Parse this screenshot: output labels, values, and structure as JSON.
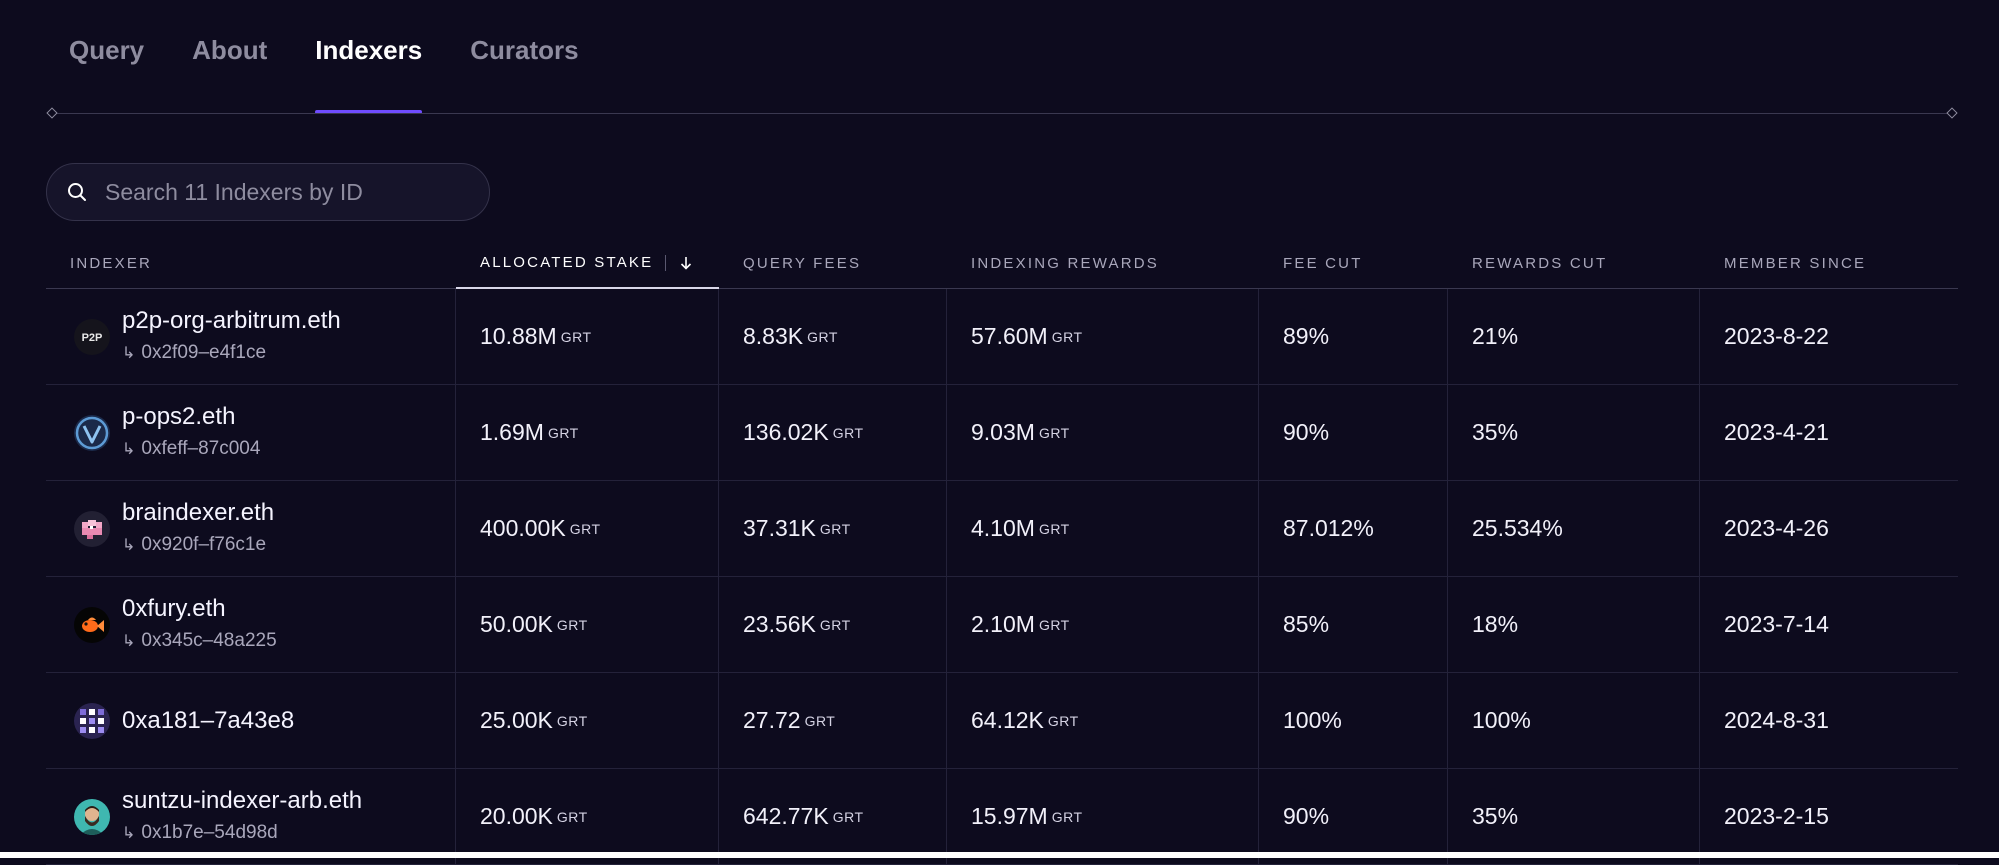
{
  "tabs": [
    {
      "label": "Query",
      "active": false
    },
    {
      "label": "About",
      "active": false
    },
    {
      "label": "Indexers",
      "active": true
    },
    {
      "label": "Curators",
      "active": false
    }
  ],
  "search": {
    "placeholder": "Search 11 Indexers by ID",
    "value": ""
  },
  "table": {
    "headers": {
      "indexer": "INDEXER",
      "allocated_stake": "ALLOCATED STAKE",
      "query_fees": "QUERY FEES",
      "indexing_rewards": "INDEXING REWARDS",
      "fee_cut": "FEE CUT",
      "rewards_cut": "REWARDS CUT",
      "member_since": "MEMBER SINCE"
    },
    "sort": {
      "column": "allocated_stake",
      "direction": "descending"
    },
    "unit": "GRT",
    "rows": [
      {
        "name": "p2p-org-arbitrum.eth",
        "address": "0x2f09–e4f1ce",
        "avatar_icon": "p2p-logo-icon",
        "allocated_stake": "10.88M",
        "query_fees": "8.83K",
        "indexing_rewards": "57.60M",
        "fee_cut": "89%",
        "rewards_cut": "21%",
        "member_since": "2023-8-22"
      },
      {
        "name": "p-ops2.eth",
        "address": "0xfeff–87c004",
        "avatar_icon": "v-check-logo-icon",
        "allocated_stake": "1.69M",
        "query_fees": "136.02K",
        "indexing_rewards": "9.03M",
        "fee_cut": "90%",
        "rewards_cut": "35%",
        "member_since": "2023-4-21"
      },
      {
        "name": "braindexer.eth",
        "address": "0x920f–f76c1e",
        "avatar_icon": "brain-logo-icon",
        "allocated_stake": "400.00K",
        "query_fees": "37.31K",
        "indexing_rewards": "4.10M",
        "fee_cut": "87.012%",
        "rewards_cut": "25.534%",
        "member_since": "2023-4-26"
      },
      {
        "name": "0xfury.eth",
        "address": "0x345c–48a225",
        "avatar_icon": "goldfish-logo-icon",
        "allocated_stake": "50.00K",
        "query_fees": "23.56K",
        "indexing_rewards": "2.10M",
        "fee_cut": "85%",
        "rewards_cut": "18%",
        "member_since": "2023-7-14"
      },
      {
        "name": "0xa181–7a43e8",
        "address": "",
        "avatar_icon": "pixel-identicon-icon",
        "allocated_stake": "25.00K",
        "query_fees": "27.72",
        "indexing_rewards": "64.12K",
        "fee_cut": "100%",
        "rewards_cut": "100%",
        "member_since": "2024-8-31"
      },
      {
        "name": "suntzu-indexer-arb.eth",
        "address": "0x1b7e–54d98d",
        "avatar_icon": "bearded-man-avatar-icon",
        "allocated_stake": "20.00K",
        "query_fees": "642.77K",
        "indexing_rewards": "15.97M",
        "fee_cut": "90%",
        "rewards_cut": "35%",
        "member_since": "2023-2-15"
      }
    ]
  },
  "colors": {
    "background": "#0d0b1e",
    "accent": "#6f4cff",
    "text_primary": "#f5f4ff",
    "text_muted": "#8e8c9f"
  }
}
